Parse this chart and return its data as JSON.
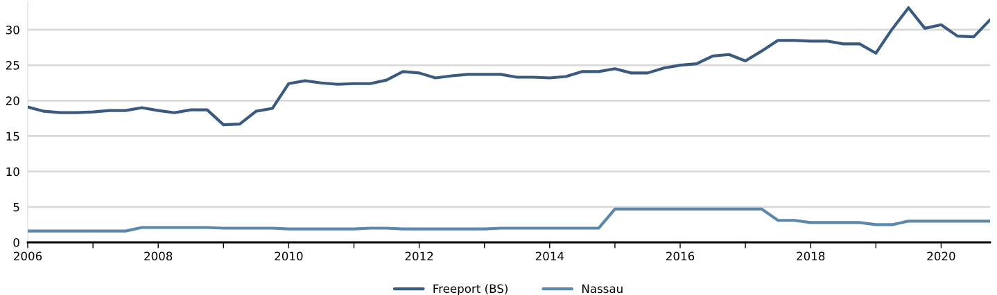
{
  "chart_data": {
    "type": "line",
    "x": [
      2006.0,
      2006.25,
      2006.5,
      2006.75,
      2007.0,
      2007.25,
      2007.5,
      2007.75,
      2008.0,
      2008.25,
      2008.5,
      2008.75,
      2009.0,
      2009.25,
      2009.5,
      2009.75,
      2010.0,
      2010.25,
      2010.5,
      2010.75,
      2011.0,
      2011.25,
      2011.5,
      2011.75,
      2012.0,
      2012.25,
      2012.5,
      2012.75,
      2013.0,
      2013.25,
      2013.5,
      2013.75,
      2014.0,
      2014.25,
      2014.5,
      2014.75,
      2015.0,
      2015.25,
      2015.5,
      2015.75,
      2016.0,
      2016.25,
      2016.5,
      2016.75,
      2017.0,
      2017.25,
      2017.5,
      2017.75,
      2018.0,
      2018.25,
      2018.5,
      2018.75,
      2019.0,
      2019.25,
      2019.5,
      2019.75,
      2020.0,
      2020.25,
      2020.5,
      2020.75
    ],
    "series": [
      {
        "name": "Freeport (BS)",
        "color": "#3a5a80",
        "values": [
          19.1,
          18.5,
          18.3,
          18.3,
          18.4,
          18.6,
          18.6,
          19.0,
          18.6,
          18.3,
          18.7,
          18.7,
          16.6,
          16.7,
          18.5,
          18.9,
          22.4,
          22.8,
          22.5,
          22.3,
          22.4,
          22.4,
          22.9,
          24.1,
          23.9,
          23.2,
          23.5,
          23.7,
          23.7,
          23.7,
          23.3,
          23.3,
          23.2,
          23.4,
          24.1,
          24.1,
          24.5,
          23.9,
          23.9,
          24.6,
          25.0,
          25.2,
          26.3,
          26.5,
          25.6,
          27.0,
          28.5,
          28.5,
          28.4,
          28.4,
          28.0,
          28.0,
          26.7,
          30.1,
          33.1,
          30.2,
          30.7,
          29.1,
          29.0,
          31.4
        ]
      },
      {
        "name": "Nassau",
        "color": "#5b87ad",
        "values": [
          1.6,
          1.6,
          1.6,
          1.6,
          1.6,
          1.6,
          1.6,
          2.1,
          2.1,
          2.1,
          2.1,
          2.1,
          2.0,
          2.0,
          2.0,
          2.0,
          1.9,
          1.9,
          1.9,
          1.9,
          1.9,
          2.0,
          2.0,
          1.9,
          1.9,
          1.9,
          1.9,
          1.9,
          1.9,
          2.0,
          2.0,
          2.0,
          2.0,
          2.0,
          2.0,
          2.0,
          4.7,
          4.7,
          4.7,
          4.7,
          4.7,
          4.7,
          4.7,
          4.7,
          4.7,
          4.7,
          3.1,
          3.1,
          2.8,
          2.8,
          2.8,
          2.8,
          2.5,
          2.5,
          3.0,
          3.0,
          3.0,
          3.0,
          3.0,
          3.0
        ]
      }
    ],
    "xlim": [
      2006,
      2020.75
    ],
    "xticks": [
      2006,
      {
        "value": 2007,
        "label": null
      },
      2008,
      {
        "value": 2009,
        "label": null
      },
      2010,
      {
        "value": 2011,
        "label": null
      },
      2012,
      {
        "value": 2013,
        "label": null
      },
      2014,
      {
        "value": 2015,
        "label": null
      },
      2016,
      {
        "value": 2017,
        "label": null
      },
      2018,
      {
        "value": 2019,
        "label": null
      },
      2020
    ],
    "ylim": [
      0,
      34
    ],
    "yticks": [
      0,
      5,
      10,
      15,
      20,
      25,
      30
    ],
    "grid": "y",
    "legend": "bottom",
    "marker": "none",
    "line_style": "solid"
  }
}
